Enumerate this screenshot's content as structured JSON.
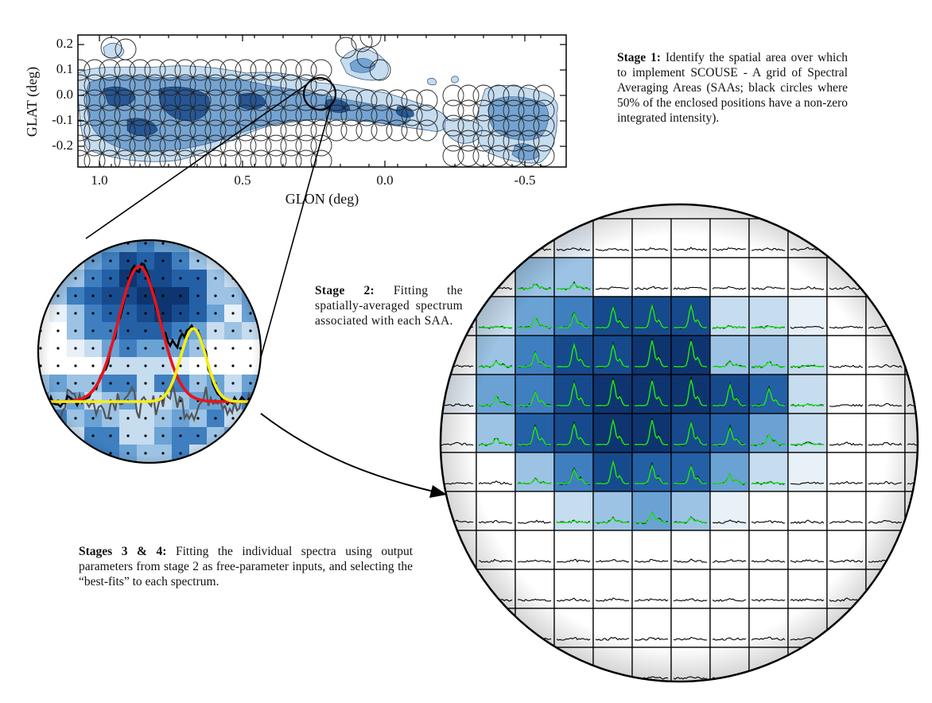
{
  "stage1": {
    "heading": "Stage 1:",
    "body": "Identify the spatial area over which to implement SCOUSE - A grid of Spectral Averaging Areas (SAAs; black circles where 50% of the enclosed positions have a non-zero integrated intensity)."
  },
  "stage2": {
    "heading": "Stage 2:",
    "body": "Fitting the spatially-averaged spectrum associated with each SAA."
  },
  "stages34": {
    "heading": "Stages 3 & 4:",
    "body": "Fitting the individual spectra using output parameters from stage 2 as free-parameter inputs, and selecting the “best-fits” to each spectrum."
  },
  "map": {
    "xlabel": "GLON (deg)",
    "ylabel": "GLAT (deg)",
    "xticks": [
      "1.0",
      "0.5",
      "0.0",
      "-0.5"
    ],
    "yticks": [
      "0.2",
      "0.1",
      "0.0",
      "-0.1",
      "-0.2"
    ]
  },
  "colors": {
    "map_dark": "#1a4a8a",
    "map_mid": "#5d95c9",
    "map_light": "#c6dcef",
    "fit_red": "#e8141b",
    "fit_yellow": "#f5ef14",
    "spectrum_green": "#1ee61e"
  },
  "icons": [
    "zoom-circle",
    "arrow-head"
  ]
}
